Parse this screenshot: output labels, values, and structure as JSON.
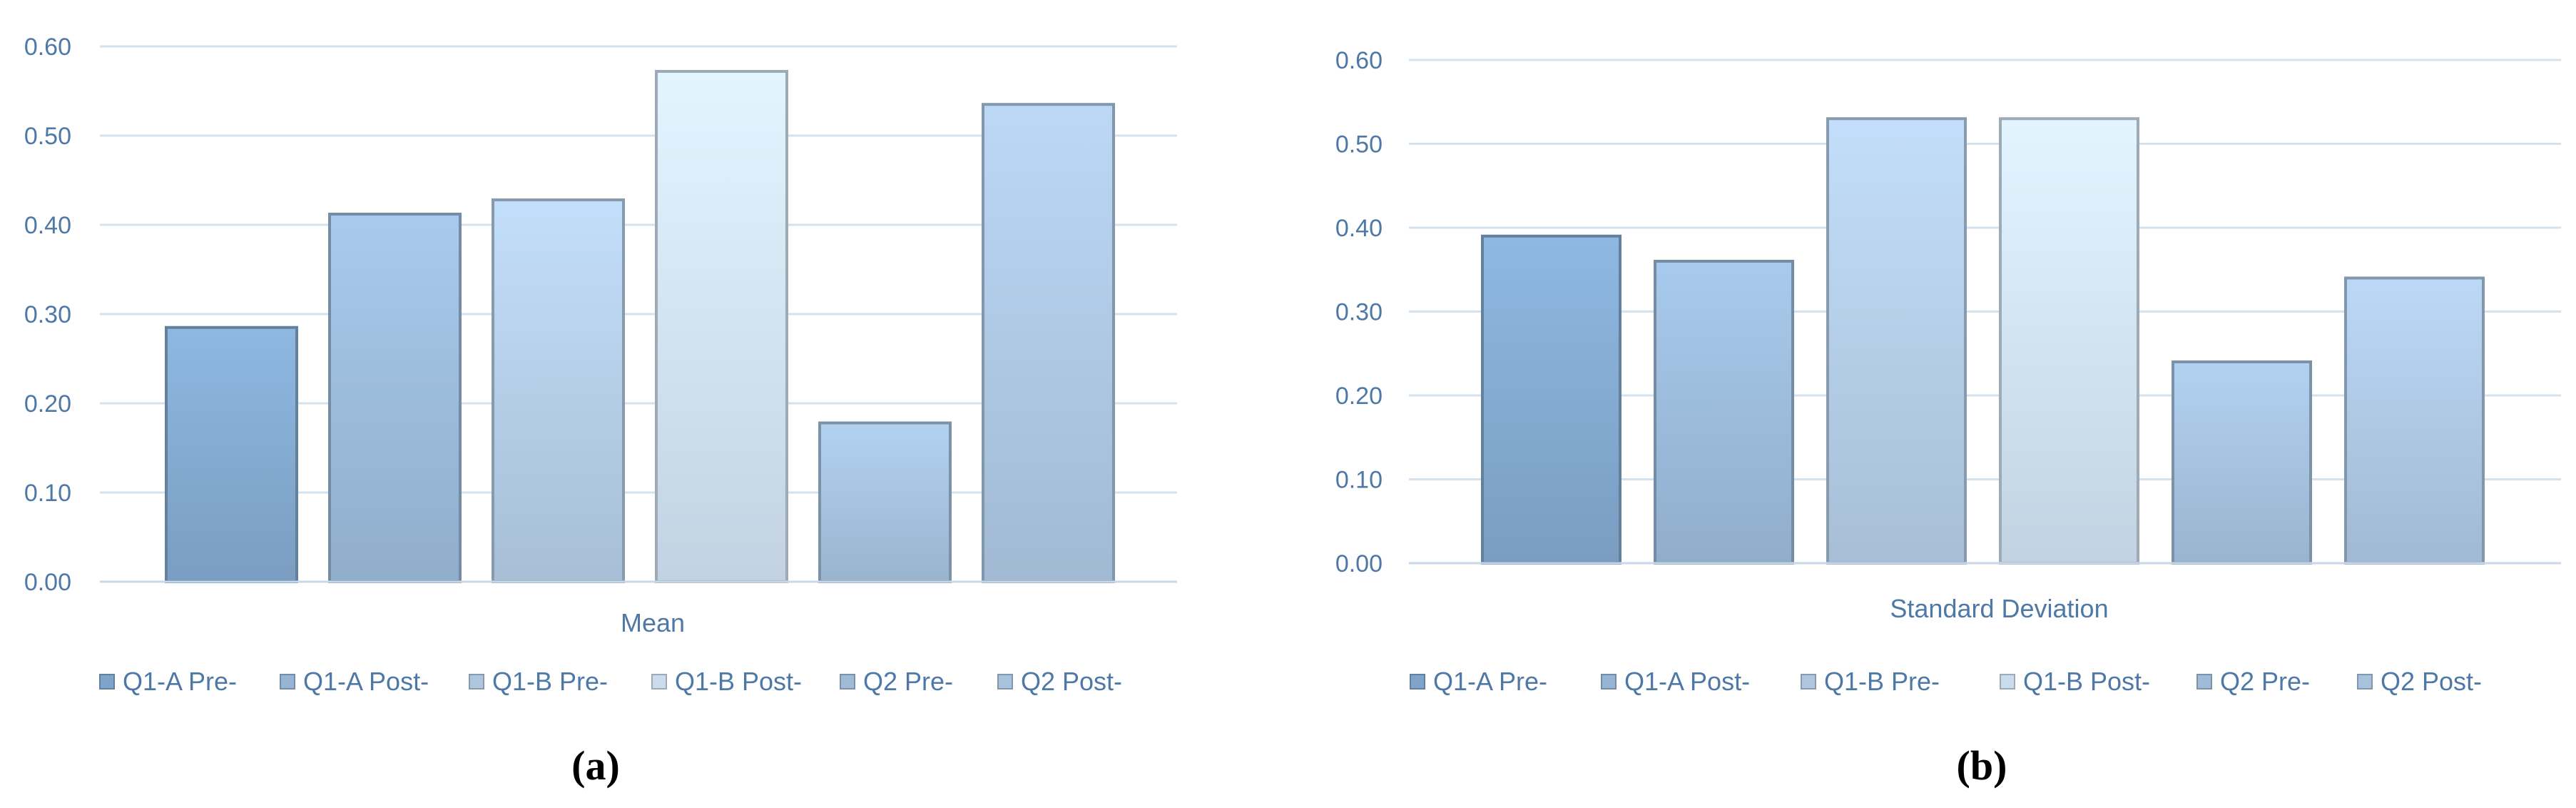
{
  "chart_data": [
    {
      "type": "bar",
      "caption": "(a)",
      "xlabel": "Mean",
      "ylabel": "",
      "title": "",
      "ylim": [
        0,
        0.6
      ],
      "yticks": [
        "0.00",
        "0.10",
        "0.20",
        "0.30",
        "0.40",
        "0.50",
        "0.60"
      ],
      "grid": true,
      "legend_position": "bottom",
      "series": [
        {
          "name": "Q1-A Pre-",
          "value": 0.285,
          "color": "#7fa4c9"
        },
        {
          "name": "Q1-A Post-",
          "value": 0.412,
          "color": "#96b4d3"
        },
        {
          "name": "Q1-B Pre-",
          "value": 0.428,
          "color": "#aec6df"
        },
        {
          "name": "Q1-B Post-",
          "value": 0.572,
          "color": "#cadbeb"
        },
        {
          "name": "Q2 Pre-",
          "value": 0.178,
          "color": "#9fbbd7"
        },
        {
          "name": "Q2 Post-",
          "value": 0.535,
          "color": "#a8c1dc"
        }
      ]
    },
    {
      "type": "bar",
      "caption": "(b)",
      "xlabel": "Standard Deviation",
      "ylabel": "",
      "title": "",
      "ylim": [
        0,
        0.6
      ],
      "yticks": [
        "0.00",
        "0.10",
        "0.20",
        "0.30",
        "0.40",
        "0.50",
        "0.60"
      ],
      "grid": true,
      "legend_position": "bottom",
      "series": [
        {
          "name": "Q1-A Pre-",
          "value": 0.39,
          "color": "#7fa4c9"
        },
        {
          "name": "Q1-A Post-",
          "value": 0.36,
          "color": "#96b4d3"
        },
        {
          "name": "Q1-B Pre-",
          "value": 0.53,
          "color": "#aec6df"
        },
        {
          "name": "Q1-B Post-",
          "value": 0.53,
          "color": "#cadbeb"
        },
        {
          "name": "Q2 Pre-",
          "value": 0.24,
          "color": "#9fbbd7"
        },
        {
          "name": "Q2 Post-",
          "value": 0.34,
          "color": "#a8c1dc"
        }
      ]
    }
  ]
}
